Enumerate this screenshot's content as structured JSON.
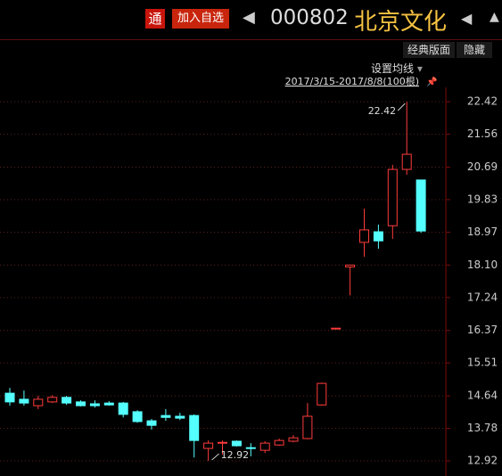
{
  "header": {
    "tag": "通",
    "add_button": "加入自选",
    "code": "000802",
    "name": "北京文化"
  },
  "toolbar": {
    "layout": "经典版面",
    "hide": "隐藏",
    "ma_setting": "设置均线"
  },
  "chart_data": {
    "type": "candlestick",
    "subtitle": "2017/3/15-2017/8/8(100根)",
    "open": [
      14.71,
      14.55,
      14.38,
      14.48,
      14.6,
      14.48,
      14.43,
      14.45,
      14.45,
      14.22,
      13.98,
      14.12,
      14.1,
      14.12,
      13.25,
      13.39,
      13.44,
      13.27,
      13.2,
      13.34,
      13.44,
      13.51,
      14.4,
      16.43,
      18.05,
      18.7,
      18.98,
      19.14,
      20.63,
      20.35
    ],
    "high": [
      14.85,
      14.78,
      14.64,
      14.66,
      14.64,
      14.52,
      14.52,
      14.5,
      14.48,
      14.26,
      14.03,
      14.29,
      14.19,
      14.15,
      13.46,
      13.46,
      13.46,
      13.39,
      13.44,
      13.51,
      13.6,
      14.45,
      14.99,
      16.43,
      18.1,
      19.59,
      19.17,
      20.75,
      22.42,
      20.35
    ],
    "low": [
      14.38,
      14.38,
      14.29,
      14.45,
      14.4,
      14.36,
      14.33,
      14.38,
      14.07,
      13.93,
      13.75,
      13.98,
      14.0,
      13.01,
      12.92,
      13.09,
      13.3,
      13.04,
      13.13,
      13.32,
      13.41,
      13.49,
      14.38,
      16.43,
      17.3,
      18.32,
      18.53,
      18.79,
      20.49,
      18.95
    ],
    "close": [
      14.48,
      14.45,
      14.55,
      14.6,
      14.45,
      14.38,
      14.38,
      14.4,
      14.15,
      13.96,
      13.86,
      14.07,
      14.05,
      13.46,
      13.39,
      13.41,
      13.32,
      13.25,
      13.39,
      13.46,
      13.53,
      14.1,
      14.97,
      16.43,
      18.1,
      19.03,
      18.74,
      20.63,
      21.03,
      19.0
    ],
    "up_color": "#ff3b3b",
    "down_color": "#54ffff",
    "max_label": "22.42",
    "min_label": "12.92",
    "ylim": [
      12.52,
      22.8
    ],
    "yticks": [
      12.92,
      13.78,
      14.64,
      15.51,
      16.37,
      17.24,
      {
        "value": 18.1,
        "label": "18.10"
      },
      18.97,
      19.83,
      20.69,
      21.56,
      22.42
    ],
    "grid": true
  }
}
